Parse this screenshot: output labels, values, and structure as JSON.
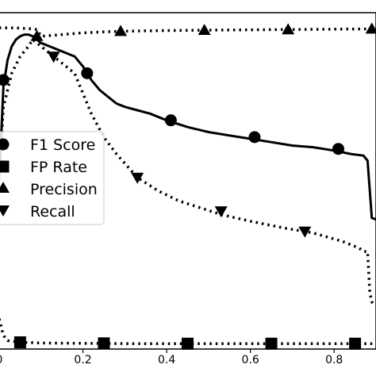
{
  "chart_data": {
    "type": "line",
    "title": "",
    "xlabel": "",
    "ylabel": "",
    "xlim": [
      0.0,
      0.9
    ],
    "ylim": [
      0.0,
      1.0
    ],
    "x_ticks": [
      "0",
      "0.2",
      "0.4",
      "0.6",
      "0.8"
    ],
    "x_tick_values": [
      0.0,
      0.2,
      0.4,
      0.6,
      0.8
    ],
    "grid": false,
    "legend_position": "center-left",
    "series": [
      {
        "name": "F1 Score",
        "line_style": "solid",
        "marker": "circle",
        "color": "#000000",
        "x": [
          0.0,
          0.01,
          0.02,
          0.03,
          0.04,
          0.05,
          0.06,
          0.07,
          0.08,
          0.09,
          0.1,
          0.12,
          0.14,
          0.16,
          0.18,
          0.2,
          0.22,
          0.24,
          0.26,
          0.28,
          0.3,
          0.33,
          0.36,
          0.4,
          0.45,
          0.5,
          0.55,
          0.6,
          0.65,
          0.7,
          0.75,
          0.8,
          0.84,
          0.87,
          0.88,
          0.89,
          0.9
        ],
        "y": [
          0.5,
          0.78,
          0.86,
          0.9,
          0.92,
          0.93,
          0.935,
          0.935,
          0.93,
          0.92,
          0.91,
          0.9,
          0.89,
          0.88,
          0.87,
          0.84,
          0.8,
          0.77,
          0.75,
          0.73,
          0.72,
          0.71,
          0.7,
          0.68,
          0.66,
          0.645,
          0.635,
          0.625,
          0.615,
          0.605,
          0.6,
          0.59,
          0.58,
          0.575,
          0.56,
          0.39,
          0.385
        ],
        "marker_x": [
          0.01,
          0.21,
          0.41,
          0.61,
          0.81
        ],
        "marker_y": [
          0.8,
          0.82,
          0.68,
          0.63,
          0.595
        ]
      },
      {
        "name": "FP Rate",
        "line_style": "dotted",
        "marker": "square",
        "color": "#000000",
        "x": [
          0.0,
          0.01,
          0.02,
          0.05,
          0.1,
          0.2,
          0.3,
          0.4,
          0.5,
          0.6,
          0.7,
          0.8,
          0.9
        ],
        "y": [
          0.09,
          0.04,
          0.025,
          0.02,
          0.018,
          0.017,
          0.016,
          0.016,
          0.016,
          0.016,
          0.016,
          0.016,
          0.016
        ],
        "marker_x": [
          0.05,
          0.25,
          0.45,
          0.65,
          0.85
        ],
        "marker_y": [
          0.02,
          0.017,
          0.016,
          0.016,
          0.016
        ]
      },
      {
        "name": "Precision",
        "line_style": "dotted",
        "marker": "triangle-up",
        "color": "#000000",
        "x": [
          0.0,
          0.04,
          0.06,
          0.08,
          0.09,
          0.1,
          0.15,
          0.2,
          0.25,
          0.3,
          0.4,
          0.5,
          0.6,
          0.7,
          0.8,
          0.9
        ],
        "y": [
          0.955,
          0.955,
          0.953,
          0.952,
          0.95,
          0.93,
          0.935,
          0.94,
          0.943,
          0.945,
          0.947,
          0.948,
          0.949,
          0.95,
          0.951,
          0.952
        ],
        "marker_x": [
          0.09,
          0.29,
          0.49,
          0.69,
          0.89
        ],
        "marker_y": [
          0.93,
          0.945,
          0.948,
          0.95,
          0.952
        ]
      },
      {
        "name": "Recall",
        "line_style": "dotted",
        "marker": "triangle-down",
        "color": "#000000",
        "x": [
          0.0,
          0.01,
          0.02,
          0.03,
          0.05,
          0.07,
          0.08,
          0.1,
          0.13,
          0.16,
          0.18,
          0.2,
          0.22,
          0.25,
          0.28,
          0.33,
          0.38,
          0.43,
          0.48,
          0.53,
          0.6,
          0.68,
          0.75,
          0.82,
          0.86,
          0.87,
          0.88,
          0.885,
          0.89,
          0.9
        ],
        "y": [
          0.52,
          0.72,
          0.77,
          0.82,
          0.87,
          0.9,
          0.92,
          0.9,
          0.87,
          0.84,
          0.82,
          0.76,
          0.7,
          0.63,
          0.58,
          0.51,
          0.47,
          0.44,
          0.42,
          0.4,
          0.38,
          0.36,
          0.345,
          0.32,
          0.3,
          0.29,
          0.29,
          0.17,
          0.14,
          0.13
        ],
        "marker_x": [
          0.13,
          0.33,
          0.53,
          0.73
        ],
        "marker_y": [
          0.87,
          0.51,
          0.41,
          0.35
        ]
      }
    ]
  }
}
